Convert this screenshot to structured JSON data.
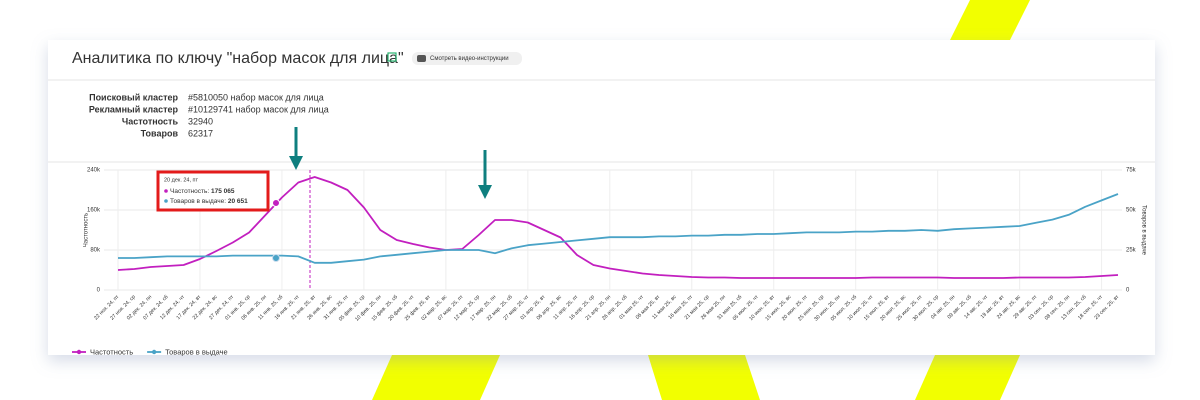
{
  "header": {
    "title": "Аналитика по ключу \"набор масок для лица\"",
    "button": "Смотреть видео-инструкции"
  },
  "info": [
    {
      "label": "Поисковый кластер",
      "value": "#5810050 набор масок для лица"
    },
    {
      "label": "Рекламный кластер",
      "value": "#10129741 набор масок для лица"
    },
    {
      "label": "Частотность",
      "value": "32940"
    },
    {
      "label": "Товаров",
      "value": "62317"
    }
  ],
  "chart_data": {
    "type": "line",
    "y_label": "Частотность",
    "y2_label": "Товаров в выдаче",
    "categories": [
      "22 ноя. 24, пт",
      "27 ноя. 24, ср",
      "02 дек. 24, пн",
      "07 дек. 24, сб",
      "12 дек. 24, чт",
      "17 дек. 24, вт",
      "22 дек. 24, вс",
      "27 дек. 24, пт",
      "01 янв. 25, ср",
      "06 янв. 25, пн",
      "11 янв. 25, сб",
      "16 янв. 25, чт",
      "21 янв. 25, вт",
      "26 янв. 25, вс",
      "31 янв. 25, пт",
      "05 фев. 25, ср",
      "10 фев. 25, пн",
      "15 фев. 25, сб",
      "20 фев. 25, чт",
      "25 фев. 25, вт",
      "02 мар. 25, вс",
      "07 мар. 25, пт",
      "12 мар. 25, ср",
      "17 мар. 25, пн",
      "22 мар. 25, сб",
      "27 мар. 25, чт",
      "01 апр. 25, вт",
      "06 апр. 25, вс",
      "11 апр. 25, пт",
      "16 апр. 25, ср",
      "21 апр. 25, пн",
      "26 апр. 25, сб",
      "01 мая 25, чт",
      "06 мая 25, вт",
      "11 мая 25, вс",
      "16 мая 25, пт",
      "21 мая 25, ср",
      "26 мая 25, пн",
      "31 мая 25, сб",
      "05 июн. 25, чт",
      "10 июн. 25, вт",
      "15 июн. 25, вс",
      "20 июн. 25, пт",
      "25 июн. 25, ср",
      "30 июн. 25, пн",
      "05 июл. 25, сб",
      "10 июл. 25, чт",
      "15 июл. 25, вт",
      "20 июл. 25, вс",
      "25 июл. 25, пт",
      "30 июл. 25, ср",
      "04 авг. 25, пн",
      "09 авг. 25, сб",
      "14 авг. 25, чт",
      "19 авг. 25, вт",
      "24 авг. 25, вс",
      "29 авг. 25, пт",
      "03 сен. 25, ср",
      "08 сен. 25, пн",
      "13 сен. 25, сб",
      "18 сен. 25, чт",
      "23 сен. 25, вт"
    ],
    "series": [
      {
        "name": "Частотность",
        "color": "#c21fbf",
        "values": [
          40000,
          42000,
          46000,
          48000,
          50000,
          62000,
          78000,
          95000,
          115000,
          150000,
          185000,
          215000,
          226000,
          215000,
          200000,
          165000,
          120000,
          100000,
          92000,
          85000,
          80000,
          82000,
          110000,
          140000,
          140000,
          135000,
          120000,
          105000,
          70000,
          50000,
          43000,
          38000,
          33000,
          30000,
          28000,
          26000,
          25000,
          25000,
          24000,
          24000,
          24000,
          24000,
          24000,
          24000,
          24000,
          24000,
          25000,
          25000,
          25000,
          25000,
          25000,
          24000,
          24000,
          24000,
          24000,
          25000,
          25000,
          25000,
          25000,
          26000,
          28000,
          30000
        ]
      },
      {
        "name": "Товаров в выдаче",
        "color": "#4aa3c7",
        "axis": "y2",
        "values": [
          20000,
          20000,
          20500,
          21000,
          21000,
          21000,
          21000,
          21500,
          21500,
          21500,
          21500,
          21000,
          17000,
          17000,
          18000,
          19000,
          21000,
          22000,
          23000,
          24000,
          25000,
          25000,
          25000,
          23000,
          26000,
          28000,
          29000,
          30000,
          31000,
          32000,
          33000,
          33000,
          33000,
          33500,
          33500,
          34000,
          34000,
          34500,
          34500,
          35000,
          35000,
          35500,
          36000,
          36000,
          36000,
          36500,
          36500,
          37000,
          37000,
          37500,
          37000,
          38000,
          38500,
          39000,
          39500,
          40000,
          42000,
          44000,
          47000,
          52000,
          56000,
          60000
        ]
      }
    ],
    "ylim": [
      0,
      240000
    ],
    "yticks": [
      0,
      {
        "value": 80000,
        "label": "80k"
      },
      {
        "value": 160000,
        "label": "160k"
      },
      {
        "value": 240000,
        "label": "240k"
      }
    ],
    "y2lim": [
      0,
      75000
    ],
    "y2ticks": [
      0,
      {
        "value": 25000,
        "label": "25k"
      },
      {
        "value": 50000,
        "label": "50k"
      },
      {
        "value": 75000,
        "label": "75k"
      }
    ],
    "grid": true,
    "legend": "bottom-left",
    "tooltip": {
      "date": "20 дек. 24, пт",
      "freq_label": "Частотность: ",
      "freq_value": "175 065",
      "goods_label": "Товаров в выдаче: ",
      "goods_value": "20 651"
    }
  }
}
